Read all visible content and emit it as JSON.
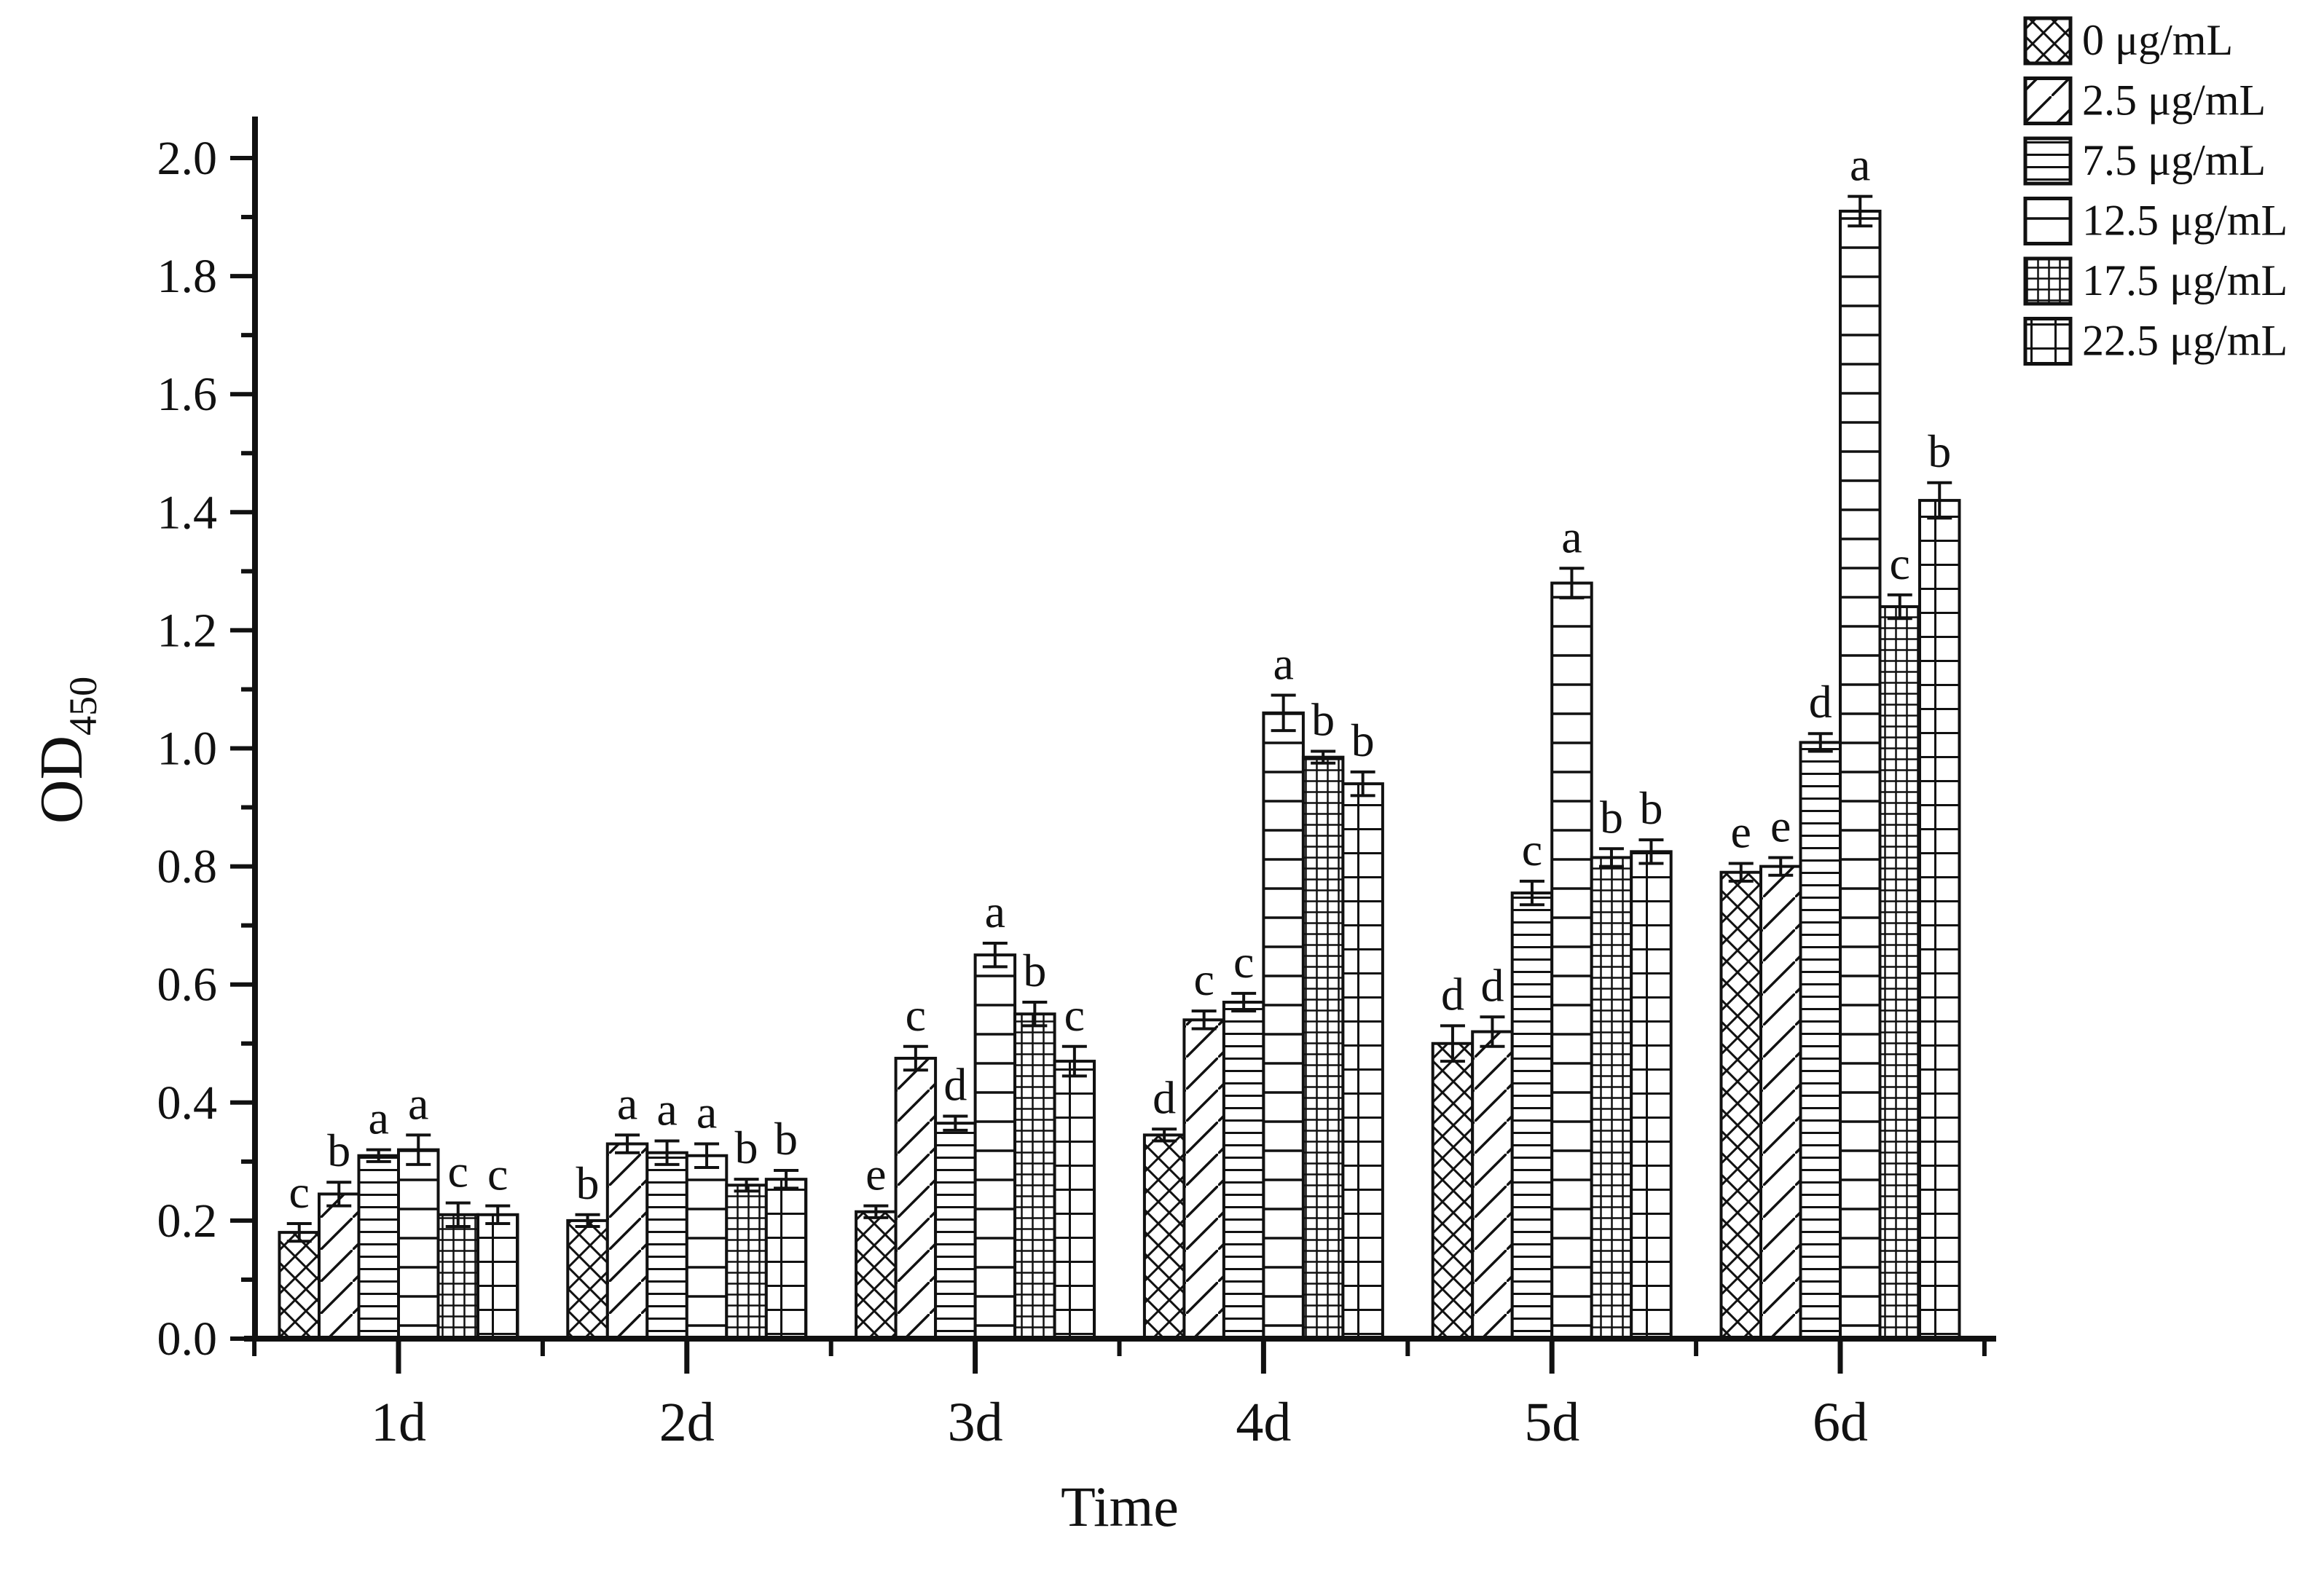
{
  "figure": {
    "background": "#ffffff",
    "ink_color": "#111111"
  },
  "chart_data": {
    "type": "bar",
    "title": "",
    "xlabel": "Time",
    "ylabel": "OD",
    "ylabel_subscript": "450",
    "categories": [
      "1d",
      "2d",
      "3d",
      "4d",
      "5d",
      "6d"
    ],
    "ylim": [
      0.0,
      2.0
    ],
    "ytick_major_step": 0.2,
    "ytick_minor_step": 0.1,
    "grid": false,
    "legend_position": "top-right",
    "bar_fill": "#ffffff",
    "series": [
      {
        "name": "0 μg/mL",
        "pattern": "crosshatch",
        "values": [
          0.18,
          0.2,
          0.215,
          0.345,
          0.5,
          0.79
        ],
        "errors": [
          0.015,
          0.01,
          0.01,
          0.01,
          0.03,
          0.015
        ],
        "letters": [
          "c",
          "b",
          "e",
          "d",
          "d",
          "e"
        ]
      },
      {
        "name": "2.5 μg/mL",
        "pattern": "diagonal",
        "values": [
          0.245,
          0.33,
          0.475,
          0.54,
          0.52,
          0.8
        ],
        "errors": [
          0.02,
          0.015,
          0.02,
          0.015,
          0.025,
          0.015
        ],
        "letters": [
          "b",
          "a",
          "c",
          "c",
          "d",
          "e"
        ]
      },
      {
        "name": "7.5 μg/mL",
        "pattern": "horizontal-dense",
        "values": [
          0.31,
          0.315,
          0.365,
          0.57,
          0.755,
          1.01
        ],
        "errors": [
          0.01,
          0.02,
          0.012,
          0.015,
          0.02,
          0.015
        ],
        "letters": [
          "a",
          "a",
          "d",
          "c",
          "c",
          "d"
        ]
      },
      {
        "name": "12.5 μg/mL",
        "pattern": "horizontal-sparse",
        "values": [
          0.32,
          0.31,
          0.65,
          1.06,
          1.28,
          1.91
        ],
        "errors": [
          0.025,
          0.02,
          0.02,
          0.03,
          0.025,
          0.025
        ],
        "letters": [
          "a",
          "a",
          "a",
          "a",
          "a",
          "a"
        ]
      },
      {
        "name": "17.5 μg/mL",
        "pattern": "grid-fine",
        "values": [
          0.21,
          0.26,
          0.55,
          0.985,
          0.815,
          1.24
        ],
        "errors": [
          0.02,
          0.01,
          0.02,
          0.01,
          0.015,
          0.02
        ],
        "letters": [
          "c",
          "b",
          "b",
          "b",
          "b",
          "c"
        ]
      },
      {
        "name": "22.5 μg/mL",
        "pattern": "grid-coarse",
        "values": [
          0.21,
          0.27,
          0.47,
          0.94,
          0.825,
          1.42
        ],
        "errors": [
          0.015,
          0.015,
          0.025,
          0.02,
          0.02,
          0.03
        ],
        "letters": [
          "c",
          "b",
          "c",
          "b",
          "b",
          "b"
        ]
      }
    ]
  }
}
